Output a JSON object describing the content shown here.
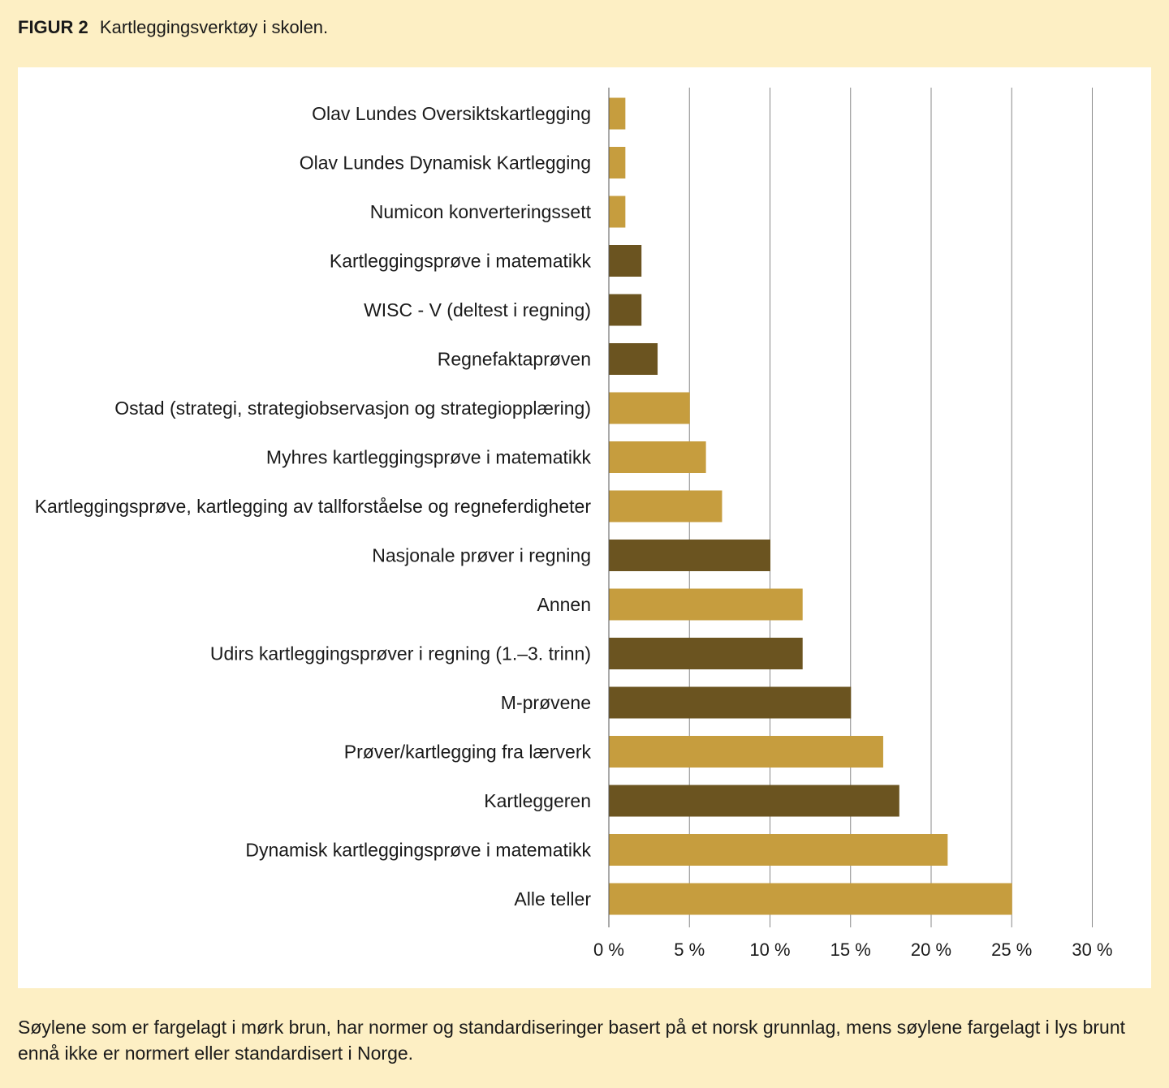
{
  "header": {
    "figure_label": "FIGUR 2",
    "title": "Kartleggingsverktøy i skolen."
  },
  "caption": "Søylene som er fargelagt i mørk brun, har normer og standardiseringer basert på et norsk grunnlag, mens søylene fargelagt i lys brunt ennå ikke er normert eller standardisert i Norge.",
  "colors": {
    "page_background": "#fdefc4",
    "panel_background": "#ffffff",
    "dark_brown": "#6b5420",
    "light_brown": "#c69d3e",
    "gridline": "#888888"
  },
  "chart_data": {
    "type": "bar",
    "orientation": "horizontal",
    "title": "Kartleggingsverktøy i skolen.",
    "xlabel": "",
    "ylabel": "",
    "xlim": [
      0,
      30
    ],
    "x_ticks": [
      0,
      5,
      10,
      15,
      20,
      25,
      30
    ],
    "x_tick_labels": [
      "0 %",
      "5 %",
      "10 %",
      "15 %",
      "20 %",
      "25 %",
      "30 %"
    ],
    "grid": true,
    "categories": [
      "Olav Lundes Oversiktskartlegging",
      "Olav Lundes Dynamisk Kartlegging",
      "Numicon konverteringssett",
      "Kartleggingsprøve i matematikk",
      "WISC - V (deltest i regning)",
      "Regnefaktaprøven",
      "Ostad (strategi, strategiobservasjon og strategiopplæring)",
      "Myhres kartleggingsprøve i matematikk",
      "Kartleggingsprøve, kartlegging av tallforståelse og regneferdigheter",
      "Nasjonale prøver i regning",
      "Annen",
      "Udirs kartleggingsprøver i regning (1.–3. trinn)",
      "M-prøvene",
      "Prøver/kartlegging fra lærverk",
      "Kartleggeren",
      "Dynamisk kartleggingsprøve i matematikk",
      "Alle teller"
    ],
    "values": [
      1,
      1,
      1,
      2,
      2,
      3,
      5,
      6,
      7,
      10,
      12,
      12,
      15,
      17,
      18,
      21,
      25
    ],
    "normed_in_norway": [
      false,
      false,
      false,
      true,
      true,
      true,
      false,
      false,
      false,
      true,
      false,
      true,
      true,
      false,
      true,
      false,
      false
    ]
  }
}
